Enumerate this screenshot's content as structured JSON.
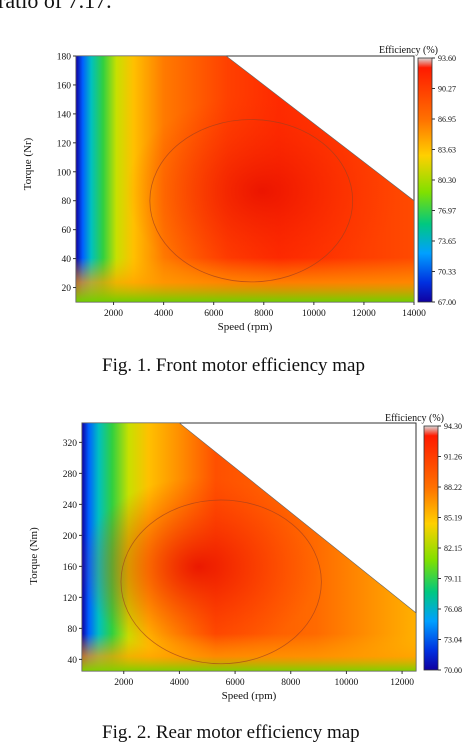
{
  "intro_text": "ratio of 7.17.",
  "figures": [
    {
      "caption": "Fig. 1.   Front motor efficiency map",
      "colorbar_title": "Efficiency (%)",
      "colorbar_ticks": [
        "93.60",
        "90.27",
        "86.95",
        "83.63",
        "80.30",
        "76.97",
        "73.65",
        "70.33",
        "67.00"
      ],
      "colors": [
        "#d9d9d9",
        "#ff1a00",
        "#ff6a00",
        "#ffc000",
        "#b8e000",
        "#22c840",
        "#00b8c8",
        "#0060ff",
        "#1000a0"
      ]
    },
    {
      "caption": "Fig. 2.   Rear motor efficiency map",
      "colorbar_title": "Efficiency (%)",
      "colorbar_ticks": [
        "94.30",
        "91.26",
        "88.22",
        "85.19",
        "82.15",
        "79.11",
        "76.08",
        "73.04",
        "70.00"
      ],
      "colors": [
        "#d9d9d9",
        "#ff1a00",
        "#ff6a00",
        "#ffc000",
        "#b8e000",
        "#22c840",
        "#00b8c8",
        "#0060ff",
        "#1000a0"
      ]
    }
  ],
  "chart_data": [
    {
      "type": "heatmap",
      "title": "",
      "xlabel": "Speed (rpm)",
      "ylabel": "Torque (Nr)",
      "x_ticks": [
        2000,
        4000,
        6000,
        8000,
        10000,
        12000,
        14000
      ],
      "y_ticks": [
        20,
        40,
        60,
        80,
        100,
        120,
        140,
        160,
        180
      ],
      "xlim": [
        500,
        14000
      ],
      "ylim": [
        10,
        180
      ],
      "zlabel": "Efficiency (%)",
      "zlim": [
        67.0,
        93.6
      ],
      "peak_efficiency_region": {
        "speed": 7500,
        "torque": 80
      },
      "boundary": [
        [
          500,
          180
        ],
        [
          6500,
          180
        ],
        [
          14000,
          80
        ],
        [
          14000,
          10
        ],
        [
          500,
          10
        ]
      ]
    },
    {
      "type": "heatmap",
      "title": "",
      "xlabel": "Speed (rpm)",
      "ylabel": "Torque (Nm)",
      "x_ticks": [
        2000,
        4000,
        6000,
        8000,
        10000,
        12000
      ],
      "y_ticks": [
        40,
        80,
        120,
        160,
        200,
        240,
        280,
        320
      ],
      "xlim": [
        500,
        12500
      ],
      "ylim": [
        25,
        345
      ],
      "zlabel": "Efficiency (%)",
      "zlim": [
        70.0,
        94.3
      ],
      "peak_efficiency_region": {
        "speed": 5500,
        "torque": 140
      },
      "boundary": [
        [
          500,
          345
        ],
        [
          4000,
          345
        ],
        [
          12500,
          100
        ],
        [
          12500,
          25
        ],
        [
          500,
          25
        ]
      ]
    }
  ],
  "labels": {
    "fig1_ylabel": "Torque (Nr)",
    "fig1_xlabel": "Speed (rpm)",
    "fig2_ylabel": "Torque (Nm)",
    "fig2_xlabel": "Speed (rpm)"
  }
}
